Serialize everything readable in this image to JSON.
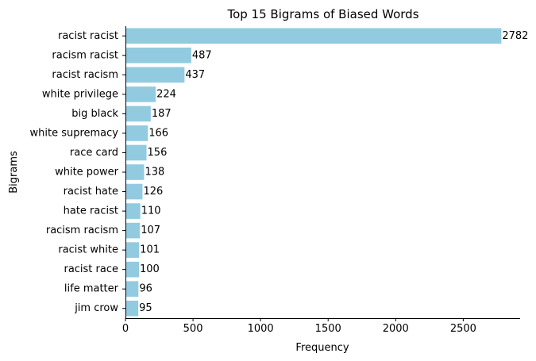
{
  "chart_data": {
    "type": "bar",
    "orientation": "horizontal",
    "title": "Top 15 Bigrams of Biased Words",
    "xlabel": "Frequency",
    "ylabel": "Bigrams",
    "categories": [
      "racist racist",
      "racism racist",
      "racist racism",
      "white privilege",
      "big black",
      "white supremacy",
      "race card",
      "white power",
      "racist hate",
      "hate racist",
      "racism racism",
      "racist white",
      "racist race",
      "life matter",
      "jim crow"
    ],
    "values": [
      2782,
      487,
      437,
      224,
      187,
      166,
      156,
      138,
      126,
      110,
      107,
      101,
      100,
      96,
      95
    ],
    "xlim": [
      0,
      2921
    ],
    "xticks": [
      0,
      500,
      1000,
      1500,
      2000,
      2500
    ],
    "bar_color": "#92cbe0",
    "grid": false,
    "legend": "none",
    "data_labels": true
  }
}
